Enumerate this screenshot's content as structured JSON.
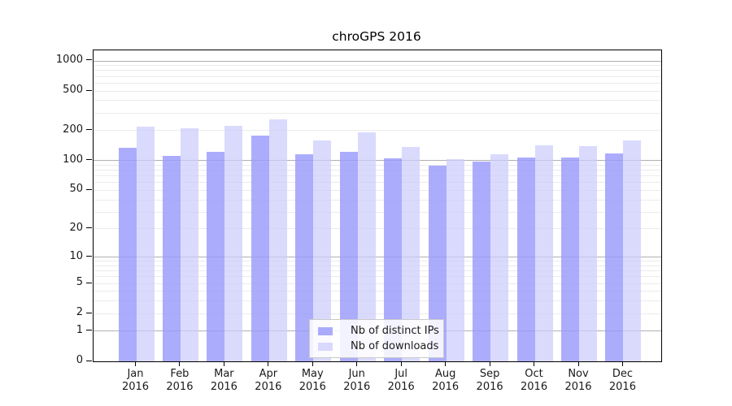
{
  "chart_data": {
    "type": "bar",
    "title": "chroGPS 2016",
    "categories": [
      "Jan",
      "Feb",
      "Mar",
      "Apr",
      "May",
      "Jun",
      "Jul",
      "Aug",
      "Sep",
      "Oct",
      "Nov",
      "Dec"
    ],
    "x_year": "2016",
    "series": [
      {
        "name": "Nb of distinct IPs",
        "key": "distinct-ips",
        "fill": "#9a9afc",
        "alpha": 0.82,
        "values": [
          136,
          111,
          122,
          180,
          117,
          123,
          105,
          89,
          97,
          107,
          107,
          119
        ]
      },
      {
        "name": "Nb of downloads",
        "key": "downloads",
        "fill": "#ccccfc",
        "alpha": 0.72,
        "values": [
          221,
          210,
          226,
          262,
          159,
          191,
          138,
          104,
          117,
          142,
          141,
          161
        ]
      }
    ],
    "yscale": "log10(value+1)",
    "ylim": [
      0,
      1270
    ],
    "yticks": [
      0,
      1,
      2,
      5,
      10,
      20,
      50,
      100,
      200,
      500,
      1000
    ],
    "grid": {
      "major": [
        1,
        10,
        100,
        1000
      ],
      "minor": [
        2,
        3,
        4,
        5,
        6,
        7,
        8,
        9,
        20,
        30,
        40,
        50,
        60,
        70,
        80,
        90,
        200,
        300,
        400,
        500,
        600,
        700,
        800,
        900
      ],
      "major_color": "#b0b0b0",
      "minor_color": "#ebebeb"
    },
    "legend_position": "bottom-center",
    "xlabel": "",
    "ylabel": ""
  }
}
